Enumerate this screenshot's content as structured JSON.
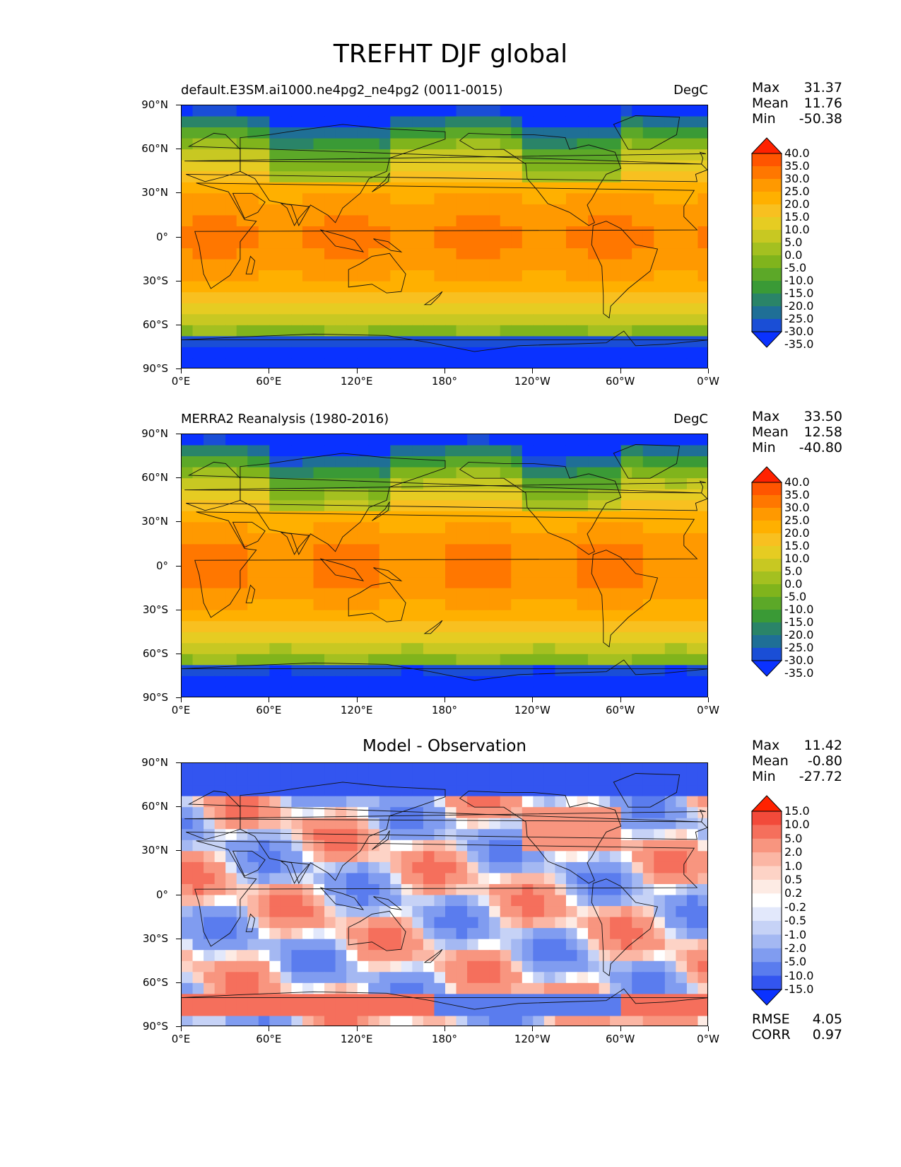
{
  "figure_title": "TREFHT DJF global",
  "axes": {
    "lat_ticks": [
      "90°N",
      "60°N",
      "30°N",
      "0°",
      "30°S",
      "60°S",
      "90°S"
    ],
    "lon_ticks": [
      "0°E",
      "60°E",
      "120°E",
      "180°",
      "120°W",
      "60°W",
      "0°W"
    ]
  },
  "panels": [
    {
      "left_title": "default.E3SM.ai1000.ne4pg2_ne4pg2 (0011-0015)",
      "center_title": "",
      "right_title": "DegC",
      "stats": {
        "max_label": "Max",
        "max": "31.37",
        "mean_label": "Mean",
        "mean": "11.76",
        "min_label": "Min",
        "min": "-50.38"
      },
      "colorbar_levels": [
        "40.0",
        "35.0",
        "30.0",
        "25.0",
        "20.0",
        "15.0",
        "10.0",
        "5.0",
        "0.0",
        "-5.0",
        "-10.0",
        "-15.0",
        "-20.0",
        "-25.0",
        "-30.0",
        "-35.0"
      ],
      "colormap": "temperature"
    },
    {
      "left_title": "MERRA2 Reanalysis (1980-2016)",
      "center_title": "",
      "right_title": "DegC",
      "stats": {
        "max_label": "Max",
        "max": "33.50",
        "mean_label": "Mean",
        "mean": "12.58",
        "min_label": "Min",
        "min": "-40.80"
      },
      "colorbar_levels": [
        "40.0",
        "35.0",
        "30.0",
        "25.0",
        "20.0",
        "15.0",
        "10.0",
        "5.0",
        "0.0",
        "-5.0",
        "-10.0",
        "-15.0",
        "-20.0",
        "-25.0",
        "-30.0",
        "-35.0"
      ],
      "colormap": "temperature"
    },
    {
      "left_title": "",
      "center_title": "Model - Observation",
      "right_title": "",
      "stats": {
        "max_label": "Max",
        "max": "11.42",
        "mean_label": "Mean",
        "mean": "-0.80",
        "min_label": "Min",
        "min": "-27.72"
      },
      "colorbar_levels": [
        "15.0",
        "10.0",
        "5.0",
        "2.0",
        "1.0",
        "0.5",
        "0.2",
        "-0.2",
        "-0.5",
        "-1.0",
        "-2.0",
        "-5.0",
        "-10.0",
        "-15.0"
      ],
      "colormap": "difference",
      "footer": {
        "rmse_label": "RMSE",
        "rmse": "4.05",
        "corr_label": "CORR",
        "corr": "0.97"
      }
    }
  ],
  "colors": {
    "temperature": [
      "#ff2200",
      "#ff5500",
      "#ff7700",
      "#ff9900",
      "#ffb000",
      "#f8c020",
      "#e6cc22",
      "#c8c822",
      "#a4c020",
      "#80b41c",
      "#5ca828",
      "#3a9a36",
      "#2a8468",
      "#1f6f96",
      "#1a4ed6",
      "#0a32ff"
    ],
    "difference": [
      "#ff2200",
      "#f24a3a",
      "#f56f5c",
      "#f8957f",
      "#fbb6a4",
      "#fdd3c6",
      "#fdebe4",
      "#ffffff",
      "#e2e8fb",
      "#c6d2f6",
      "#a4b8f2",
      "#809cf0",
      "#5a7cee",
      "#3355f0",
      "#0a32ff"
    ]
  }
}
